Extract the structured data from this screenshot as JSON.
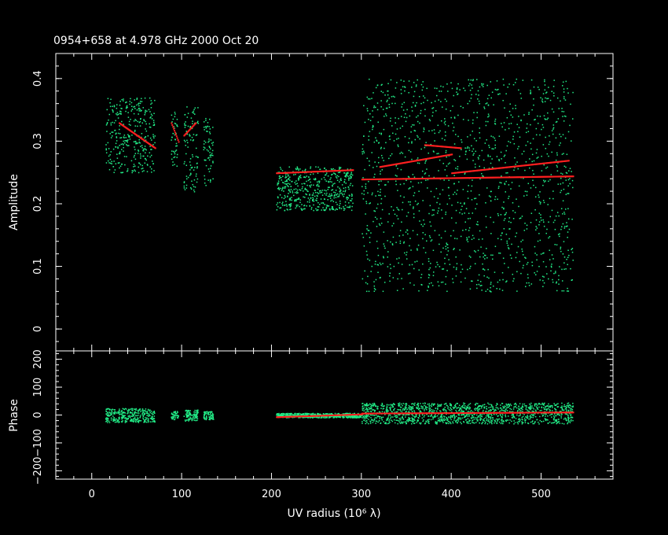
{
  "title": "0954+658 at 4.978 GHz 2000 Oct 20",
  "colors": {
    "background": "#000000",
    "frame": "#ffffff",
    "model": "#ff2020",
    "data": "#22ee88"
  },
  "chart_data": [
    {
      "type": "scatter",
      "panel": "amplitude",
      "ylabel": "Amplitude",
      "xlim": [
        -40,
        580
      ],
      "ylim": [
        -0.035,
        0.44
      ],
      "x_ticks": [
        0,
        100,
        200,
        300,
        400,
        500
      ],
      "y_ticks": [
        0,
        0.1,
        0.2,
        0.3,
        0.4
      ],
      "y_tick_labels": [
        "0",
        "0.1",
        "0.2",
        "0.3",
        "0.4"
      ],
      "series": [
        {
          "role": "observed",
          "color": "#22ee88",
          "clusters": [
            {
              "x": [
                15,
                70
              ],
              "y": [
                0.25,
                0.37
              ]
            },
            {
              "x": [
                88,
                95
              ],
              "y": [
                0.26,
                0.35
              ]
            },
            {
              "x": [
                102,
                118
              ],
              "y": [
                0.22,
                0.36
              ]
            },
            {
              "x": [
                124,
                135
              ],
              "y": [
                0.23,
                0.34
              ]
            },
            {
              "x": [
                205,
                290
              ],
              "y": [
                0.19,
                0.26
              ]
            },
            {
              "x": [
                300,
                535
              ],
              "y": [
                0.06,
                0.4
              ]
            }
          ]
        },
        {
          "role": "model",
          "color": "#ff2020",
          "segments": [
            {
              "x": [
                30,
                70
              ],
              "y": [
                0.33,
                0.29
              ]
            },
            {
              "x": [
                88,
                96
              ],
              "y": [
                0.33,
                0.3
              ]
            },
            {
              "x": [
                102,
                115
              ],
              "y": [
                0.31,
                0.33
              ]
            },
            {
              "x": [
                205,
                290
              ],
              "y": [
                0.25,
                0.255
              ]
            },
            {
              "x": [
                300,
                535
              ],
              "y": [
                0.24,
                0.245
              ]
            },
            {
              "x": [
                320,
                400
              ],
              "y": [
                0.26,
                0.28
              ]
            },
            {
              "x": [
                370,
                410
              ],
              "y": [
                0.295,
                0.29
              ]
            },
            {
              "x": [
                400,
                530
              ],
              "y": [
                0.25,
                0.27
              ]
            }
          ]
        }
      ]
    },
    {
      "type": "scatter",
      "panel": "phase",
      "ylabel": "Phase",
      "xlabel": "UV radius  (10⁶ λ)",
      "xlim": [
        -40,
        580
      ],
      "ylim": [
        -230,
        230
      ],
      "x_ticks": [
        0,
        100,
        200,
        300,
        400,
        500
      ],
      "x_tick_labels": [
        "0",
        "100",
        "200",
        "300",
        "400",
        "500"
      ],
      "y_ticks": [
        200,
        100,
        0,
        -100,
        -200
      ],
      "y_tick_labels": [
        "200",
        "100",
        "0",
        "−100",
        "−200"
      ],
      "series": [
        {
          "role": "observed",
          "color": "#22ee88",
          "clusters": [
            {
              "x": [
                15,
                70
              ],
              "y": [
                -25,
                25
              ]
            },
            {
              "x": [
                88,
                96
              ],
              "y": [
                -15,
                15
              ]
            },
            {
              "x": [
                102,
                118
              ],
              "y": [
                -20,
                20
              ]
            },
            {
              "x": [
                124,
                135
              ],
              "y": [
                -15,
                15
              ]
            },
            {
              "x": [
                205,
                300
              ],
              "y": [
                -8,
                8
              ]
            },
            {
              "x": [
                300,
                535
              ],
              "y": [
                -30,
                45
              ]
            }
          ]
        },
        {
          "role": "model",
          "color": "#ff2020",
          "segments": [
            {
              "x": [
                205,
                300
              ],
              "y": [
                -5,
                5
              ]
            },
            {
              "x": [
                300,
                535
              ],
              "y": [
                8,
                12
              ]
            }
          ]
        }
      ]
    }
  ]
}
